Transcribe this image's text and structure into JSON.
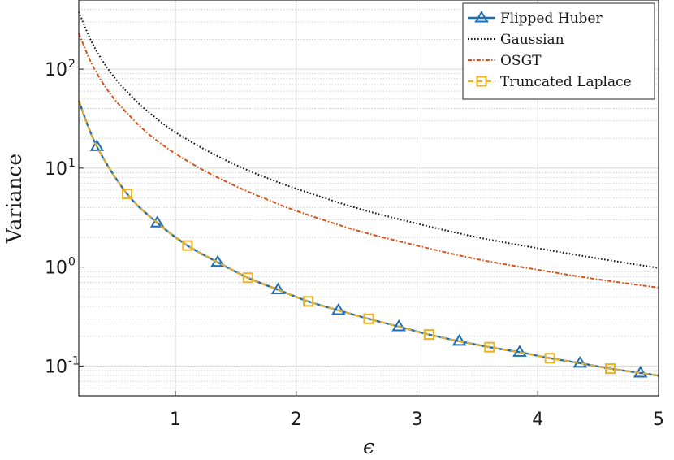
{
  "chart_data": {
    "type": "line",
    "title": "",
    "xlabel": "ϵ",
    "ylabel": "Variance",
    "xlim": [
      0.2,
      5
    ],
    "ylim": [
      0.05,
      500
    ],
    "yscale": "log",
    "grid": true,
    "legend_position": "top-right",
    "x_ticks": [
      "1",
      "2",
      "3",
      "4",
      "5"
    ],
    "y_ticks": [
      {
        "base": "10",
        "exp": "-1",
        "value": 0.1
      },
      {
        "base": "10",
        "exp": "0",
        "value": 1
      },
      {
        "base": "10",
        "exp": "1",
        "value": 10
      },
      {
        "base": "10",
        "exp": "2",
        "value": 100
      }
    ],
    "series": [
      {
        "name": "Flipped Huber",
        "color": "#1f6db5",
        "style": "solid",
        "marker": "triangle",
        "x": [
          0.2,
          0.35,
          0.6,
          0.85,
          1.1,
          1.35,
          1.6,
          1.85,
          2.1,
          2.35,
          2.6,
          2.85,
          3.1,
          3.35,
          3.6,
          3.85,
          4.1,
          4.35,
          4.6,
          4.85,
          5.0
        ],
        "y": [
          48,
          16.5,
          5.5,
          2.8,
          1.65,
          1.12,
          0.78,
          0.59,
          0.45,
          0.365,
          0.3,
          0.25,
          0.208,
          0.178,
          0.155,
          0.138,
          0.12,
          0.107,
          0.094,
          0.085,
          0.08
        ],
        "marker_x": [
          0.35,
          0.85,
          1.35,
          1.85,
          2.35,
          2.85,
          3.35,
          3.85,
          4.35,
          4.85
        ]
      },
      {
        "name": "Gaussian",
        "color": "#111111",
        "style": "dotted",
        "marker": "none",
        "x": [
          0.2,
          0.3,
          0.4,
          0.5,
          0.6,
          0.7,
          0.8,
          0.9,
          1.0,
          1.2,
          1.4,
          1.6,
          1.8,
          2.0,
          2.5,
          3.0,
          3.5,
          4.0,
          4.5,
          5.0
        ],
        "y": [
          380,
          196,
          120,
          81,
          59,
          44.5,
          35,
          28,
          23,
          16.5,
          12.3,
          9.5,
          7.6,
          6.2,
          3.95,
          2.75,
          2.0,
          1.55,
          1.22,
          0.98
        ]
      },
      {
        "name": "OSGT",
        "color": "#d95319",
        "style": "dashdot",
        "marker": "none",
        "x": [
          0.2,
          0.3,
          0.4,
          0.5,
          0.6,
          0.7,
          0.8,
          0.9,
          1.0,
          1.2,
          1.4,
          1.6,
          1.8,
          2.0,
          2.5,
          3.0,
          3.5,
          4.0,
          4.5,
          5.0
        ],
        "y": [
          230,
          118,
          72,
          49,
          36,
          27,
          21,
          17,
          14,
          10,
          7.5,
          5.8,
          4.6,
          3.7,
          2.35,
          1.65,
          1.2,
          0.94,
          0.75,
          0.62
        ]
      },
      {
        "name": "Truncated Laplace",
        "color": "#edb120",
        "style": "dashed",
        "marker": "square",
        "x": [
          0.2,
          0.35,
          0.6,
          0.85,
          1.1,
          1.35,
          1.6,
          1.85,
          2.1,
          2.35,
          2.6,
          2.85,
          3.1,
          3.35,
          3.6,
          3.85,
          4.1,
          4.35,
          4.6,
          4.85,
          5.0
        ],
        "y": [
          48,
          16.5,
          5.5,
          2.8,
          1.65,
          1.12,
          0.78,
          0.59,
          0.45,
          0.365,
          0.3,
          0.25,
          0.208,
          0.178,
          0.155,
          0.138,
          0.12,
          0.107,
          0.094,
          0.085,
          0.08
        ],
        "marker_x": [
          0.6,
          1.1,
          1.6,
          2.1,
          2.6,
          3.1,
          3.6,
          4.1,
          4.6
        ]
      }
    ]
  }
}
